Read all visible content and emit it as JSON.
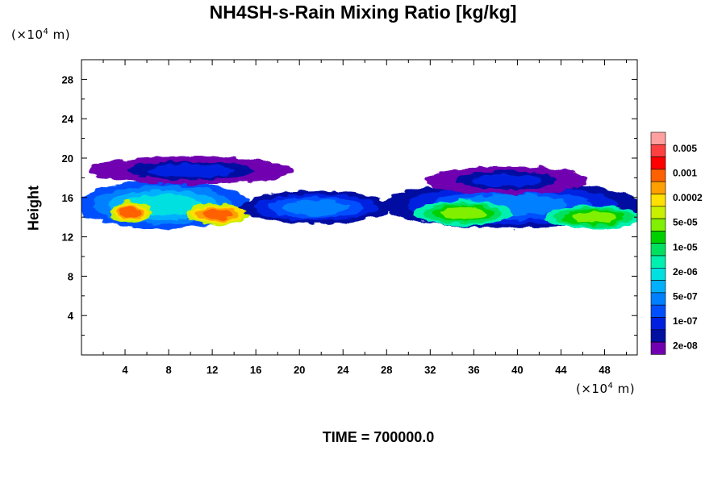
{
  "figure": {
    "title": "NH4SH-s-Rain Mixing Ratio [kg/kg]",
    "time_label": "TIME = 700000.0",
    "unit_y": {
      "prefix": "(×10",
      "exp": "4",
      "suffix": " m)"
    },
    "unit_x": {
      "prefix": "(×10",
      "exp": "4",
      "suffix": " m)"
    }
  },
  "chart_data": {
    "type": "heatmap",
    "title": "NH4SH-s-Rain Mixing Ratio [kg/kg]",
    "xlabel": "",
    "ylabel": "Height",
    "xlim": [
      0,
      51
    ],
    "ylim": [
      0,
      30
    ],
    "xticks": [
      4,
      8,
      12,
      16,
      20,
      24,
      28,
      32,
      36,
      40,
      44,
      48
    ],
    "yticks": [
      4,
      8,
      12,
      16,
      20,
      24,
      28
    ],
    "colorbar": {
      "labels": [
        "0.005",
        "0.001",
        "0.0002",
        "5e-05",
        "1e-05",
        "2e-06",
        "5e-07",
        "1e-07",
        "2e-08"
      ],
      "colors": [
        "#ff9f9f",
        "#ff4040",
        "#ff0000",
        "#ff6000",
        "#ffa000",
        "#ffe000",
        "#c8f000",
        "#80f000",
        "#00d000",
        "#00e060",
        "#00f0b0",
        "#00e0e0",
        "#00b0ff",
        "#0080ff",
        "#0050ff",
        "#0020e0",
        "#0010a0",
        "#7000b0"
      ]
    },
    "regions": [
      {
        "x": [
          0,
          15
        ],
        "y": [
          13.0,
          17.5
        ],
        "level": "2e-06"
      },
      {
        "x": [
          3,
          6
        ],
        "y": [
          13.6,
          15.4
        ],
        "level": "0.001"
      },
      {
        "x": [
          10,
          15
        ],
        "y": [
          13.4,
          15.2
        ],
        "level": "0.001"
      },
      {
        "x": [
          1,
          19
        ],
        "y": [
          17.5,
          20.0
        ],
        "level": "1e-07"
      },
      {
        "x": [
          15,
          28
        ],
        "y": [
          13.5,
          16.5
        ],
        "level": "5e-07"
      },
      {
        "x": [
          28,
          51
        ],
        "y": [
          13.0,
          17.5
        ],
        "level": "5e-07"
      },
      {
        "x": [
          31,
          39
        ],
        "y": [
          13.3,
          15.5
        ],
        "level": "5e-05"
      },
      {
        "x": [
          32,
          46
        ],
        "y": [
          16.5,
          19.0
        ],
        "level": "1e-07"
      },
      {
        "x": [
          43,
          51
        ],
        "y": [
          13.0,
          15.0
        ],
        "level": "5e-05"
      }
    ]
  }
}
